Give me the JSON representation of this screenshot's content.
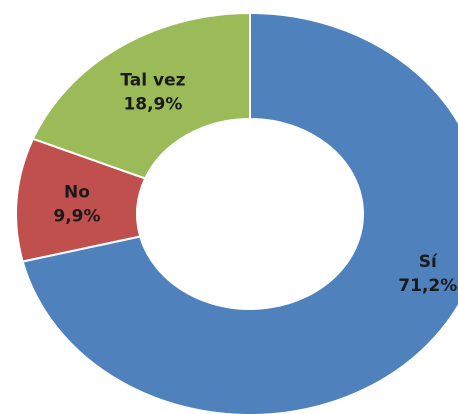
{
  "chart_data": {
    "type": "donut",
    "categories": [
      "Sí",
      "No",
      "Tal vez"
    ],
    "values": [
      71.2,
      9.9,
      18.9
    ],
    "value_labels": [
      "71,2%",
      "9,9%",
      "18,9%"
    ],
    "colors": [
      "#4f81bd",
      "#c0504d",
      "#9bbb59"
    ]
  }
}
